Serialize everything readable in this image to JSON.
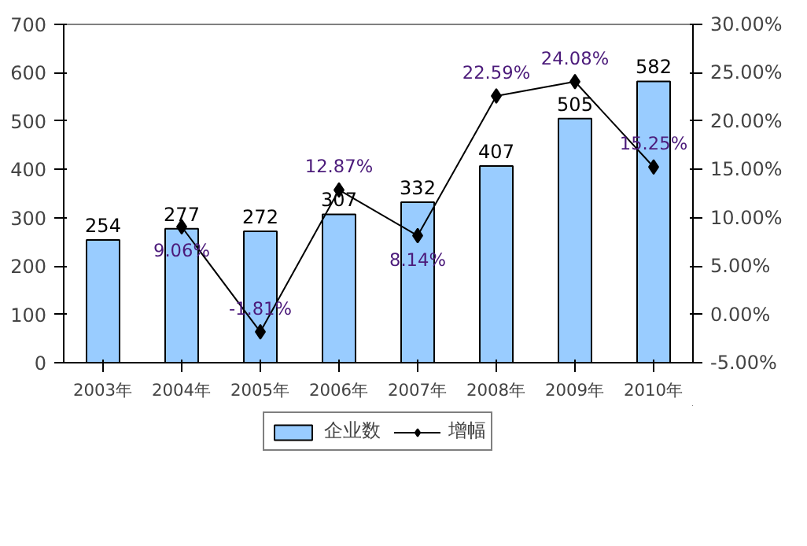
{
  "chart_data": {
    "type": "bar",
    "categories": [
      "2003年",
      "2004年",
      "2005年",
      "2006年",
      "2007年",
      "2008年",
      "2009年",
      "2010年"
    ],
    "series": [
      {
        "name": "企业数",
        "color": "#99ccff",
        "values": [
          254,
          277,
          272,
          307,
          332,
          407,
          505,
          582
        ]
      },
      {
        "name": "增幅",
        "type": "line",
        "axis": "y2",
        "color": "#000000",
        "marker": "diamond",
        "values": [
          null,
          9.06,
          -1.81,
          12.87,
          8.14,
          22.59,
          24.08,
          15.25
        ],
        "value_labels": [
          null,
          "9.06%",
          "-1.81%",
          "12.87%",
          "8.14%",
          "22.59%",
          "24.08%",
          "15.25%"
        ]
      }
    ],
    "data_labels": true,
    "ylim": [
      0,
      700
    ],
    "yticks": [
      0,
      100,
      200,
      300,
      400,
      500,
      600,
      700
    ],
    "y2lim": [
      -5,
      30
    ],
    "y2ticks": [
      {
        "value": -5,
        "label": "-5.00%"
      },
      {
        "value": 0,
        "label": "0.00%"
      },
      {
        "value": 5,
        "label": "5.00%"
      },
      {
        "value": 10,
        "label": "10.00%"
      },
      {
        "value": 15,
        "label": "15.00%"
      },
      {
        "value": 20,
        "label": "20.00%"
      },
      {
        "value": 25,
        "label": "25.00%"
      },
      {
        "value": 30,
        "label": "30.00%"
      }
    ],
    "grid": false,
    "legend": "bottom"
  }
}
